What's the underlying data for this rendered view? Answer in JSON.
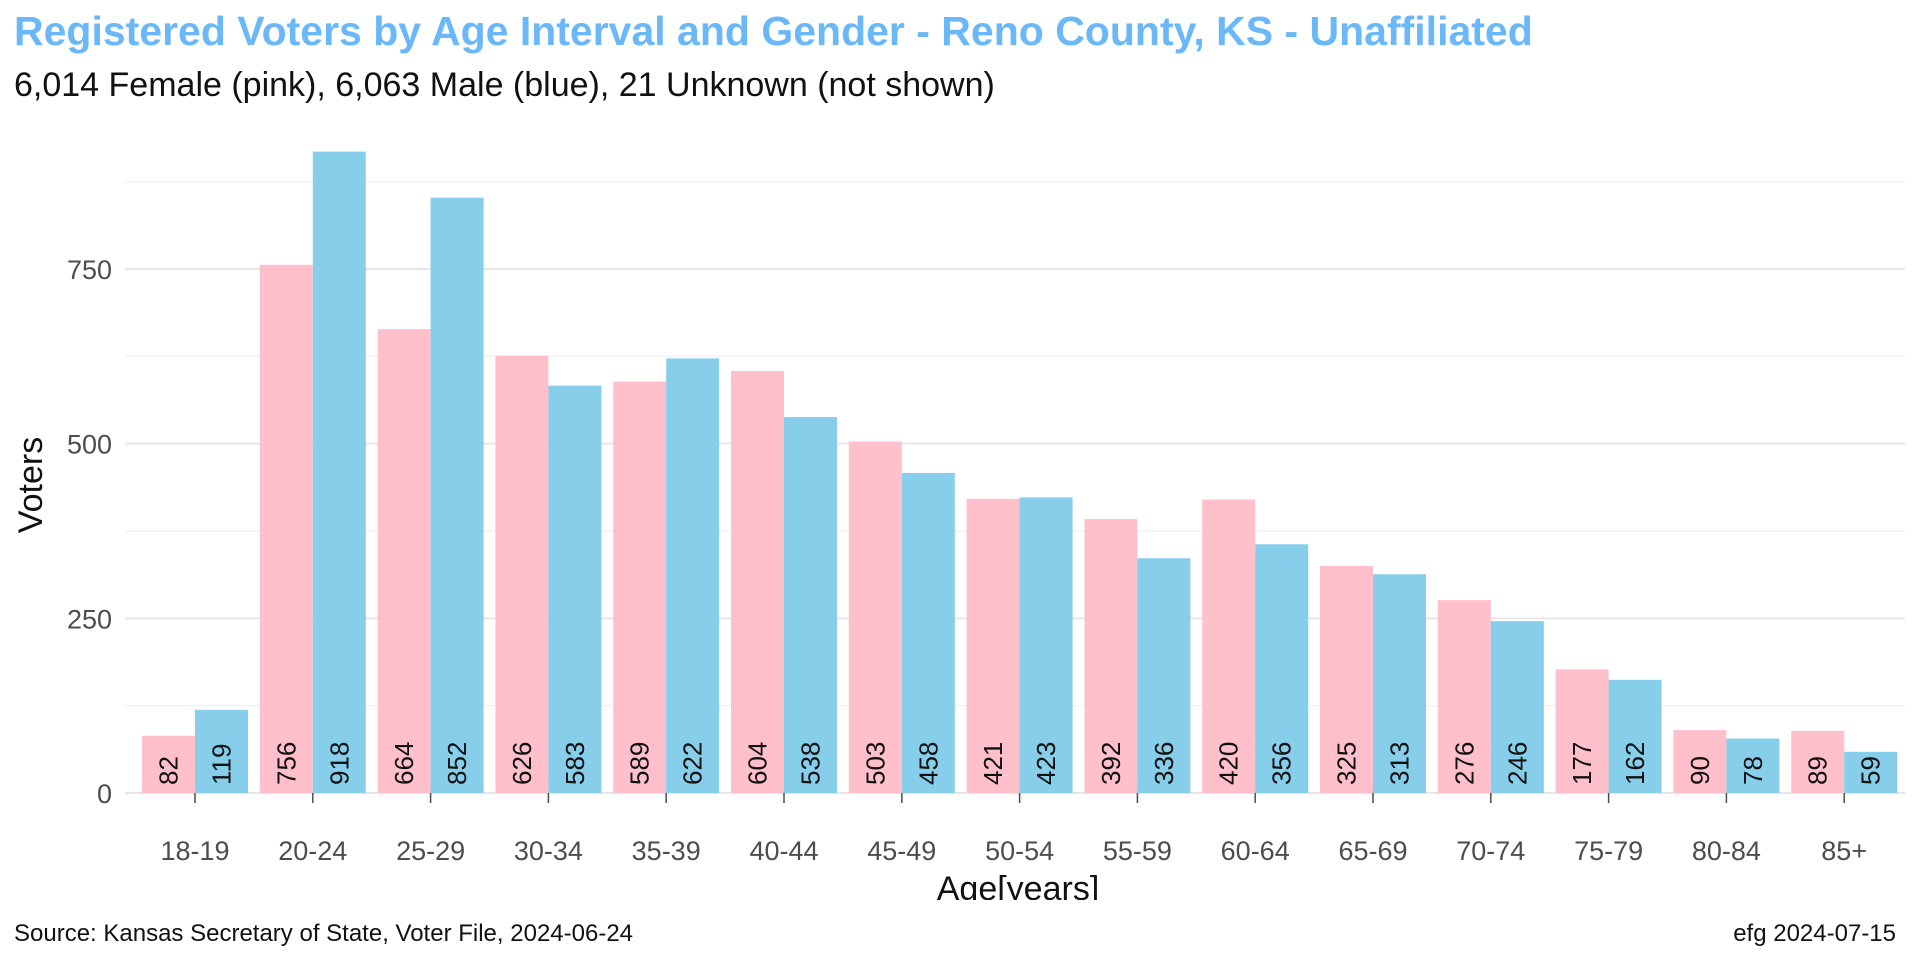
{
  "chart_data": {
    "type": "bar",
    "title": "Registered Voters by Age Interval and Gender - Reno County, KS - Unaffiliated",
    "subtitle": "6,014 Female (pink),  6,063 Male (blue),  21 Unknown (not shown)",
    "xlabel": "Age[years]",
    "ylabel": "Voters",
    "categories": [
      "18-19",
      "20-24",
      "25-29",
      "30-34",
      "35-39",
      "40-44",
      "45-49",
      "50-54",
      "55-59",
      "60-64",
      "65-69",
      "70-74",
      "75-79",
      "80-84",
      "85+"
    ],
    "series": [
      {
        "values": [
          82,
          756,
          664,
          626,
          589,
          604,
          503,
          421,
          392,
          420,
          325,
          276,
          177,
          90,
          89
        ],
        "color": "#ffc0cb"
      },
      {
        "values": [
          119,
          918,
          852,
          583,
          622,
          538,
          458,
          423,
          336,
          356,
          313,
          246,
          162,
          78,
          59
        ],
        "color": "#87ceeb"
      }
    ],
    "yticks": [
      0,
      250,
      500,
      750
    ],
    "ylim": [
      0,
      918
    ],
    "grid": true,
    "source": "Source: Kansas Secretary of State, Voter File, 2024-06-24",
    "credit": "efg 2024-07-15"
  }
}
